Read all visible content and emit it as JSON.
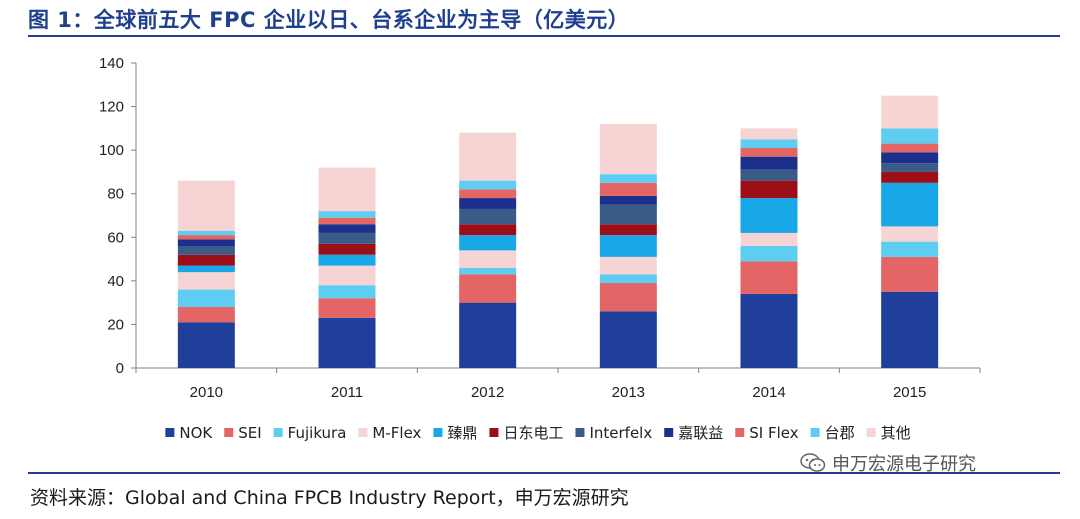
{
  "figure": {
    "title": "图 1：全球前五大 FPC 企业以日、台系企业为主导（亿美元）",
    "source": "资料来源：Global and China FPCB Industry Report，申万宏源研究",
    "watermark": "申万宏源电子研究",
    "watermark_icon": "wechat-icon"
  },
  "chart_data": {
    "type": "bar",
    "stacked": true,
    "title": "",
    "xlabel": "",
    "ylabel": "",
    "categories": [
      "2010",
      "2011",
      "2012",
      "2013",
      "2014",
      "2015"
    ],
    "ylim": [
      0,
      140
    ],
    "yticks": [
      0,
      20,
      40,
      60,
      80,
      100,
      120,
      140
    ],
    "grid": false,
    "legend_position": "bottom",
    "series": [
      {
        "name": "NOK",
        "color": "#1f3f9a",
        "values": [
          21,
          23,
          30,
          26,
          34,
          35
        ]
      },
      {
        "name": "SEI",
        "color": "#e36565",
        "values": [
          7,
          9,
          13,
          13,
          15,
          16
        ]
      },
      {
        "name": "Fujikura",
        "color": "#5ecdf2",
        "values": [
          8,
          6,
          3,
          4,
          7,
          7
        ]
      },
      {
        "name": "M-Flex",
        "color": "#f6d4d4",
        "values": [
          8,
          9,
          8,
          8,
          6,
          7
        ]
      },
      {
        "name": "臻鼎",
        "color": "#18a8e8",
        "values": [
          3,
          5,
          7,
          10,
          16,
          20
        ]
      },
      {
        "name": "日东电工",
        "color": "#9c0f17",
        "values": [
          5,
          5,
          5,
          5,
          8,
          5
        ]
      },
      {
        "name": "Interfelx",
        "color": "#3a5a88",
        "values": [
          4,
          5,
          7,
          9,
          5,
          4
        ]
      },
      {
        "name": "嘉联益",
        "color": "#1c2f8c",
        "values": [
          3,
          4,
          5,
          4,
          6,
          5
        ]
      },
      {
        "name": "SI Flex",
        "color": "#e36565",
        "values": [
          2,
          3,
          4,
          6,
          4,
          4
        ]
      },
      {
        "name": "台郡",
        "color": "#5ecdf2",
        "values": [
          2,
          3,
          4,
          4,
          4,
          7
        ]
      },
      {
        "name": "其他",
        "color": "#f6d4d4",
        "values": [
          23,
          20,
          22,
          23,
          5,
          15
        ]
      }
    ]
  }
}
